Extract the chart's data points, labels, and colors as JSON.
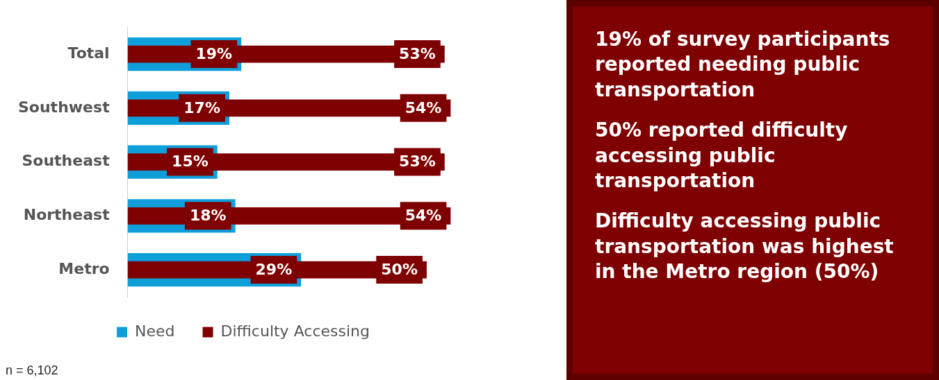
{
  "chart_data": [
    {
      "type": "bar",
      "orientation": "horizontal",
      "categories": [
        "Total",
        "Southwest",
        "Southeast",
        "Northeast",
        "Metro"
      ],
      "series": [
        {
          "name": "Need",
          "color": "#0e9fdb",
          "values": [
            19,
            17,
            15,
            18,
            29
          ],
          "value_labels": [
            "19%",
            "17%",
            "15%",
            "18%",
            "29%"
          ]
        },
        {
          "name": "Difficulty Accessing",
          "color": "#7f0000",
          "values": [
            53,
            54,
            53,
            54,
            50
          ],
          "value_labels": [
            "53%",
            "54%",
            "53%",
            "54%",
            "50%"
          ]
        }
      ],
      "legend": "bottom",
      "grid": false,
      "tick_labels": "y",
      "annotations": [
        "n = 6,102"
      ]
    },
    {
      "type": "other",
      "annotations": [
        "19% of survey participants reported needing public transportation",
        "50% reported difficulty accessing public transportation",
        "Difficulty accessing public transportation was highest in the Metro region (50%)"
      ]
    }
  ]
}
